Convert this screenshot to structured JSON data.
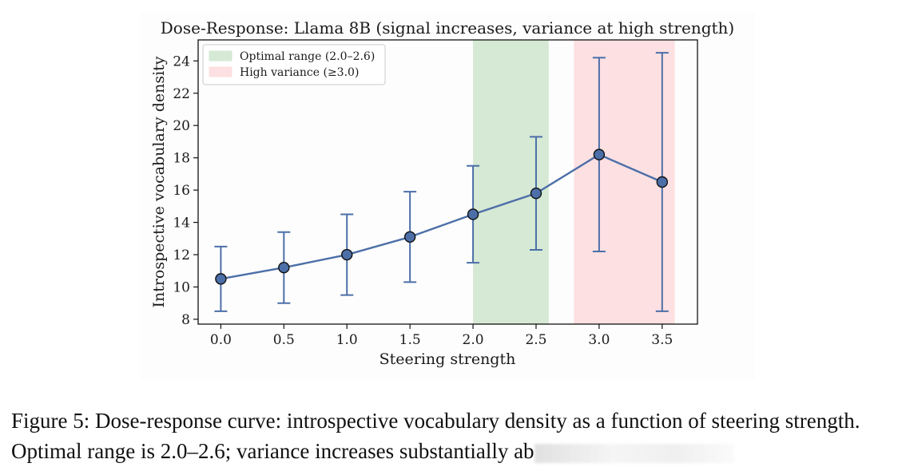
{
  "chart_data": {
    "type": "line",
    "title": "Dose-Response: Llama 8B (signal increases, variance at high strength)",
    "xlabel": "Steering strength",
    "ylabel": "Introspective vocabulary density",
    "xlim": [
      -0.18,
      3.78
    ],
    "ylim": [
      7.7,
      25.3
    ],
    "xticks": [
      0.0,
      0.5,
      1.0,
      1.5,
      2.0,
      2.5,
      3.0,
      3.5
    ],
    "xtick_labels": [
      "0.0",
      "0.5",
      "1.0",
      "1.5",
      "2.0",
      "2.5",
      "3.0",
      "3.5"
    ],
    "yticks": [
      8,
      10,
      12,
      14,
      16,
      18,
      20,
      22,
      24
    ],
    "ytick_labels": [
      "8",
      "10",
      "12",
      "14",
      "16",
      "18",
      "20",
      "22",
      "24"
    ],
    "grid": false,
    "legend_position": "top-left",
    "series": [
      {
        "name": "Llama 8B",
        "color": "#4c6fa8",
        "marker_edge": "#111111",
        "x": [
          0.0,
          0.5,
          1.0,
          1.5,
          2.0,
          2.5,
          3.0,
          3.5
        ],
        "y": [
          10.5,
          11.2,
          12.0,
          13.1,
          14.5,
          15.8,
          18.2,
          16.5
        ],
        "err_low": [
          8.5,
          9.0,
          9.5,
          10.3,
          11.5,
          12.3,
          12.2,
          8.5
        ],
        "err_high": [
          12.5,
          13.4,
          14.5,
          15.9,
          17.5,
          19.3,
          24.2,
          24.5
        ]
      }
    ],
    "spans": [
      {
        "label": "Optimal range (2.0–2.6)",
        "x0": 2.0,
        "x1": 2.6,
        "color": "#d5e9d4"
      },
      {
        "label": "High variance (≥3.0)",
        "x0": 2.8,
        "x1": 3.6,
        "color": "#fde0e2"
      }
    ]
  },
  "caption": {
    "text": "Figure 5: Dose-response curve: introspective vocabulary density as a function of steering strength. Optimal range is 2.0–2.6; variance increases substantially ab"
  }
}
